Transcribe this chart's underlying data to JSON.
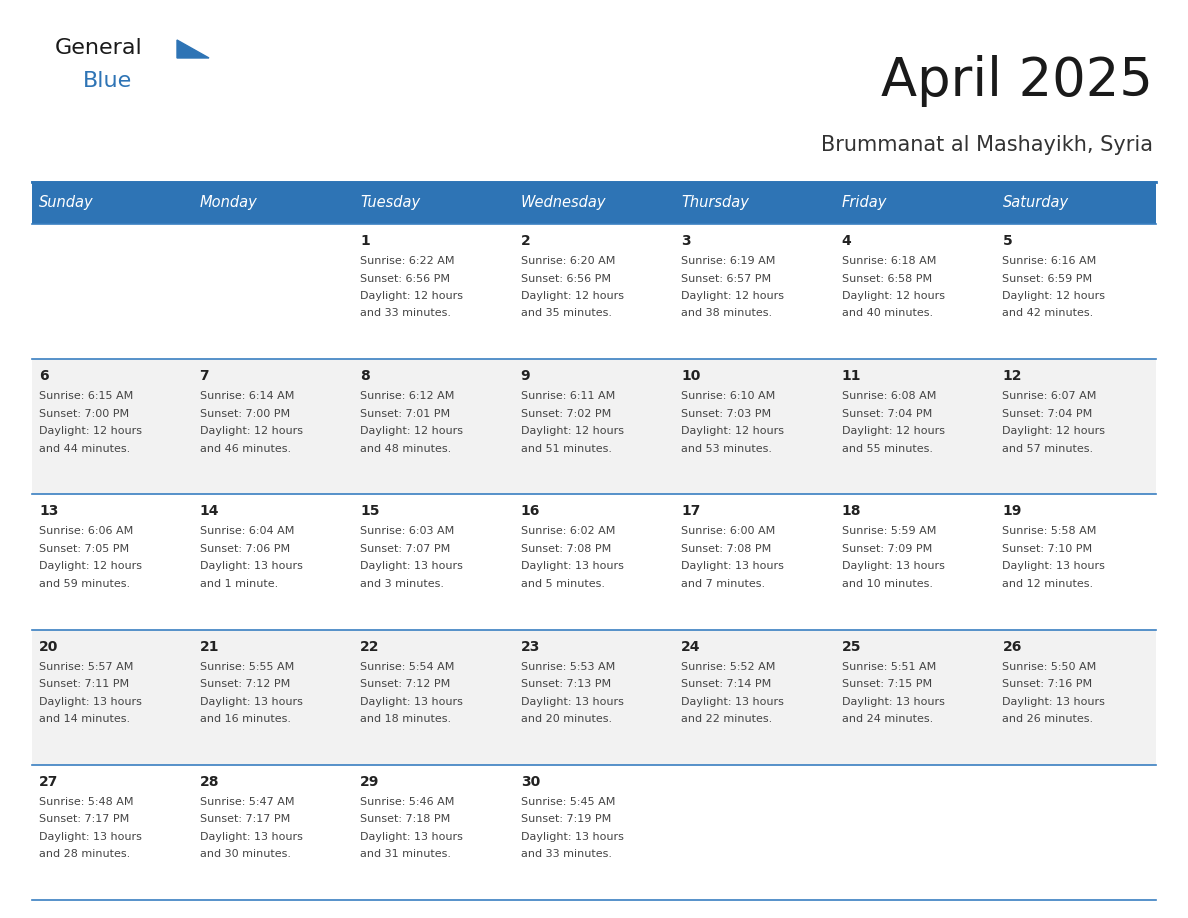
{
  "title": "April 2025",
  "subtitle": "Brummanat al Mashayikh, Syria",
  "header_bg": "#2E74B5",
  "header_text": "#FFFFFF",
  "row_bg_odd": "#FFFFFF",
  "row_bg_even": "#F2F2F2",
  "cell_text": "#444444",
  "day_number_color": "#222222",
  "grid_line_color": "#3A7FC1",
  "days_of_week": [
    "Sunday",
    "Monday",
    "Tuesday",
    "Wednesday",
    "Thursday",
    "Friday",
    "Saturday"
  ],
  "calendar_data": [
    [
      {
        "day": "",
        "sunrise": "",
        "sunset": "",
        "daylight": ""
      },
      {
        "day": "",
        "sunrise": "",
        "sunset": "",
        "daylight": ""
      },
      {
        "day": "1",
        "sunrise": "6:22 AM",
        "sunset": "6:56 PM",
        "daylight_line1": "Daylight: 12 hours",
        "daylight_line2": "and 33 minutes."
      },
      {
        "day": "2",
        "sunrise": "6:20 AM",
        "sunset": "6:56 PM",
        "daylight_line1": "Daylight: 12 hours",
        "daylight_line2": "and 35 minutes."
      },
      {
        "day": "3",
        "sunrise": "6:19 AM",
        "sunset": "6:57 PM",
        "daylight_line1": "Daylight: 12 hours",
        "daylight_line2": "and 38 minutes."
      },
      {
        "day": "4",
        "sunrise": "6:18 AM",
        "sunset": "6:58 PM",
        "daylight_line1": "Daylight: 12 hours",
        "daylight_line2": "and 40 minutes."
      },
      {
        "day": "5",
        "sunrise": "6:16 AM",
        "sunset": "6:59 PM",
        "daylight_line1": "Daylight: 12 hours",
        "daylight_line2": "and 42 minutes."
      }
    ],
    [
      {
        "day": "6",
        "sunrise": "6:15 AM",
        "sunset": "7:00 PM",
        "daylight_line1": "Daylight: 12 hours",
        "daylight_line2": "and 44 minutes."
      },
      {
        "day": "7",
        "sunrise": "6:14 AM",
        "sunset": "7:00 PM",
        "daylight_line1": "Daylight: 12 hours",
        "daylight_line2": "and 46 minutes."
      },
      {
        "day": "8",
        "sunrise": "6:12 AM",
        "sunset": "7:01 PM",
        "daylight_line1": "Daylight: 12 hours",
        "daylight_line2": "and 48 minutes."
      },
      {
        "day": "9",
        "sunrise": "6:11 AM",
        "sunset": "7:02 PM",
        "daylight_line1": "Daylight: 12 hours",
        "daylight_line2": "and 51 minutes."
      },
      {
        "day": "10",
        "sunrise": "6:10 AM",
        "sunset": "7:03 PM",
        "daylight_line1": "Daylight: 12 hours",
        "daylight_line2": "and 53 minutes."
      },
      {
        "day": "11",
        "sunrise": "6:08 AM",
        "sunset": "7:04 PM",
        "daylight_line1": "Daylight: 12 hours",
        "daylight_line2": "and 55 minutes."
      },
      {
        "day": "12",
        "sunrise": "6:07 AM",
        "sunset": "7:04 PM",
        "daylight_line1": "Daylight: 12 hours",
        "daylight_line2": "and 57 minutes."
      }
    ],
    [
      {
        "day": "13",
        "sunrise": "6:06 AM",
        "sunset": "7:05 PM",
        "daylight_line1": "Daylight: 12 hours",
        "daylight_line2": "and 59 minutes."
      },
      {
        "day": "14",
        "sunrise": "6:04 AM",
        "sunset": "7:06 PM",
        "daylight_line1": "Daylight: 13 hours",
        "daylight_line2": "and 1 minute."
      },
      {
        "day": "15",
        "sunrise": "6:03 AM",
        "sunset": "7:07 PM",
        "daylight_line1": "Daylight: 13 hours",
        "daylight_line2": "and 3 minutes."
      },
      {
        "day": "16",
        "sunrise": "6:02 AM",
        "sunset": "7:08 PM",
        "daylight_line1": "Daylight: 13 hours",
        "daylight_line2": "and 5 minutes."
      },
      {
        "day": "17",
        "sunrise": "6:00 AM",
        "sunset": "7:08 PM",
        "daylight_line1": "Daylight: 13 hours",
        "daylight_line2": "and 7 minutes."
      },
      {
        "day": "18",
        "sunrise": "5:59 AM",
        "sunset": "7:09 PM",
        "daylight_line1": "Daylight: 13 hours",
        "daylight_line2": "and 10 minutes."
      },
      {
        "day": "19",
        "sunrise": "5:58 AM",
        "sunset": "7:10 PM",
        "daylight_line1": "Daylight: 13 hours",
        "daylight_line2": "and 12 minutes."
      }
    ],
    [
      {
        "day": "20",
        "sunrise": "5:57 AM",
        "sunset": "7:11 PM",
        "daylight_line1": "Daylight: 13 hours",
        "daylight_line2": "and 14 minutes."
      },
      {
        "day": "21",
        "sunrise": "5:55 AM",
        "sunset": "7:12 PM",
        "daylight_line1": "Daylight: 13 hours",
        "daylight_line2": "and 16 minutes."
      },
      {
        "day": "22",
        "sunrise": "5:54 AM",
        "sunset": "7:12 PM",
        "daylight_line1": "Daylight: 13 hours",
        "daylight_line2": "and 18 minutes."
      },
      {
        "day": "23",
        "sunrise": "5:53 AM",
        "sunset": "7:13 PM",
        "daylight_line1": "Daylight: 13 hours",
        "daylight_line2": "and 20 minutes."
      },
      {
        "day": "24",
        "sunrise": "5:52 AM",
        "sunset": "7:14 PM",
        "daylight_line1": "Daylight: 13 hours",
        "daylight_line2": "and 22 minutes."
      },
      {
        "day": "25",
        "sunrise": "5:51 AM",
        "sunset": "7:15 PM",
        "daylight_line1": "Daylight: 13 hours",
        "daylight_line2": "and 24 minutes."
      },
      {
        "day": "26",
        "sunrise": "5:50 AM",
        "sunset": "7:16 PM",
        "daylight_line1": "Daylight: 13 hours",
        "daylight_line2": "and 26 minutes."
      }
    ],
    [
      {
        "day": "27",
        "sunrise": "5:48 AM",
        "sunset": "7:17 PM",
        "daylight_line1": "Daylight: 13 hours",
        "daylight_line2": "and 28 minutes."
      },
      {
        "day": "28",
        "sunrise": "5:47 AM",
        "sunset": "7:17 PM",
        "daylight_line1": "Daylight: 13 hours",
        "daylight_line2": "and 30 minutes."
      },
      {
        "day": "29",
        "sunrise": "5:46 AM",
        "sunset": "7:18 PM",
        "daylight_line1": "Daylight: 13 hours",
        "daylight_line2": "and 31 minutes."
      },
      {
        "day": "30",
        "sunrise": "5:45 AM",
        "sunset": "7:19 PM",
        "daylight_line1": "Daylight: 13 hours",
        "daylight_line2": "and 33 minutes."
      },
      {
        "day": "",
        "sunrise": "",
        "sunset": "",
        "daylight_line1": "",
        "daylight_line2": ""
      },
      {
        "day": "",
        "sunrise": "",
        "sunset": "",
        "daylight_line1": "",
        "daylight_line2": ""
      },
      {
        "day": "",
        "sunrise": "",
        "sunset": "",
        "daylight_line1": "",
        "daylight_line2": ""
      }
    ]
  ],
  "logo_general_color": "#1a1a1a",
  "logo_blue_color": "#2E74B5",
  "title_color": "#1a1a1a",
  "subtitle_color": "#333333",
  "fig_width": 11.88,
  "fig_height": 9.18,
  "dpi": 100
}
